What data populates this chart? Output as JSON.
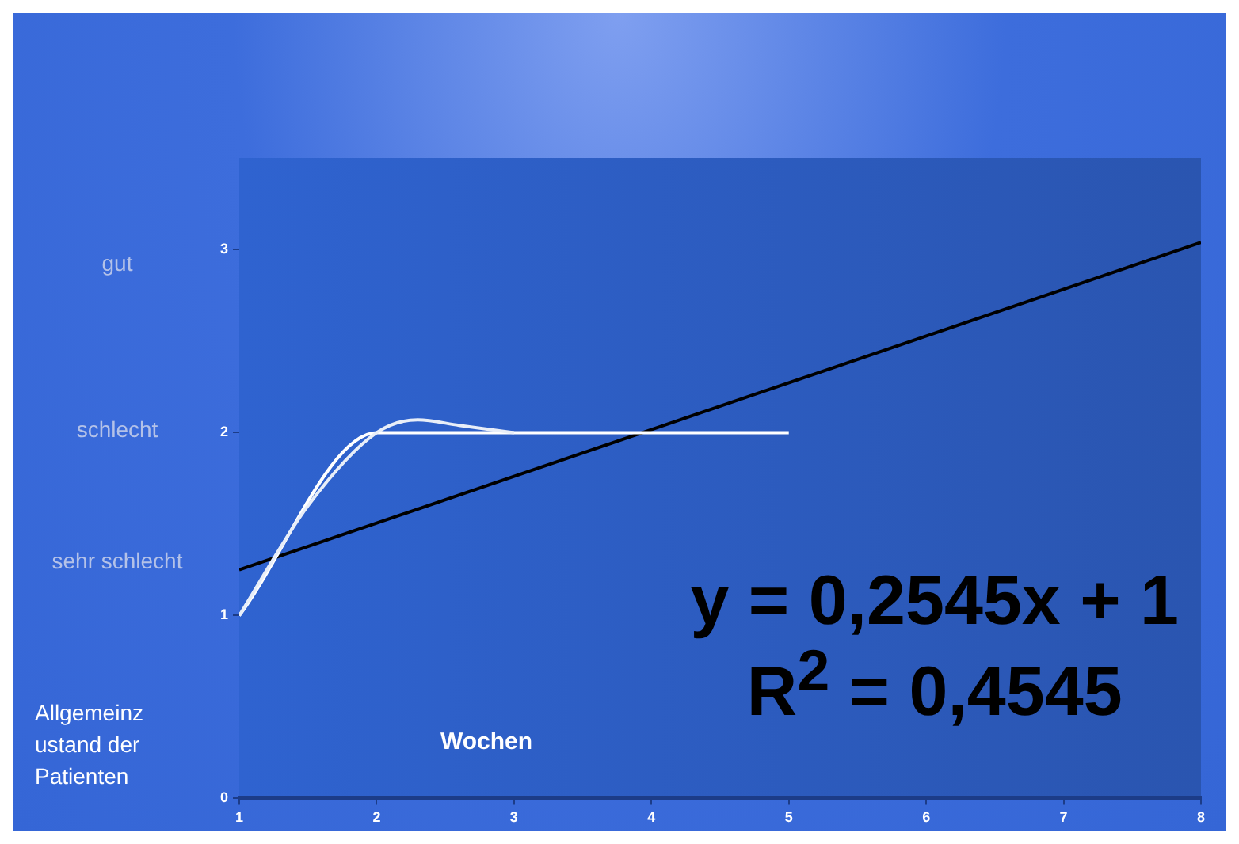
{
  "chart_data": {
    "type": "line",
    "xlabel": "Wochen",
    "ylabel": "Allgemeinzustand der Patienten",
    "series": [
      {
        "color": "#e8eef8",
        "x": [
          1,
          1.5,
          2,
          2.3,
          2.6,
          3
        ],
        "values": [
          1,
          1.6,
          2,
          2.07,
          2.04,
          2
        ]
      },
      {
        "color": "#ffffff",
        "x": [
          1,
          2,
          3,
          4,
          5
        ],
        "values": [
          1,
          2,
          2,
          2,
          2
        ]
      },
      {
        "color": "#000000",
        "x": [
          1,
          8
        ],
        "values": [
          1.25,
          3.04
        ]
      }
    ],
    "xlim": [
      1,
      8
    ],
    "xticks": [
      1,
      2,
      3,
      4,
      5,
      6,
      7,
      8
    ],
    "ylim": [
      0,
      3.5
    ],
    "yticks": [
      0,
      1,
      2,
      3
    ],
    "annotations": [
      "y = 0,2545x + 1",
      "R$^{2}$ = 0,4545",
      "gut",
      "schlecht",
      "sehr schlecht"
    ],
    "grid": false,
    "legend": false,
    "marker": "none",
    "line_style": "solid"
  }
}
